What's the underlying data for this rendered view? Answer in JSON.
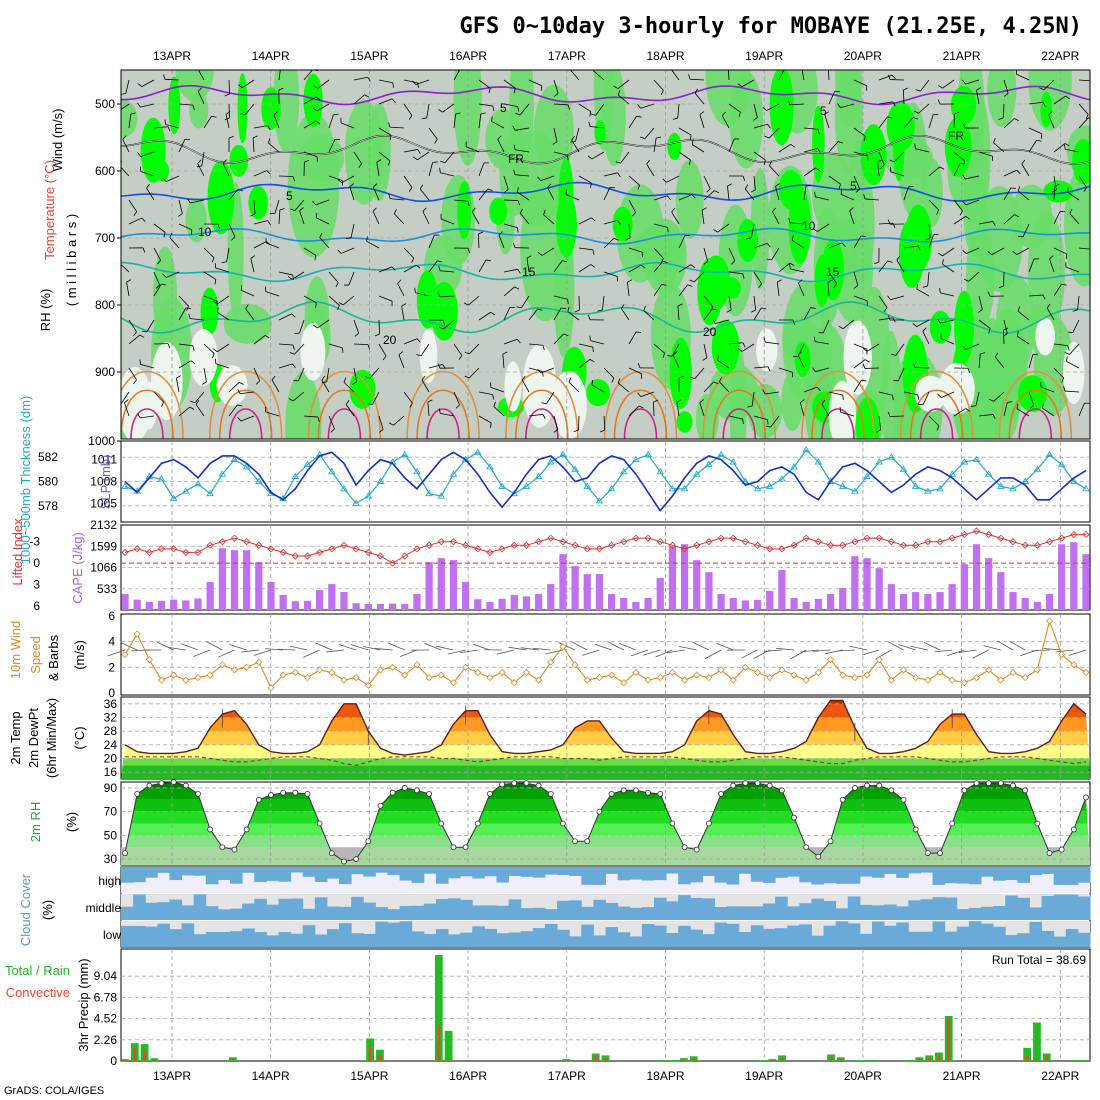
{
  "header": {
    "title": "GFS 0~10day 3-hourly for MOBAYE (21.25E, 4.25N)",
    "footer": "GrADS: COLA/IGES",
    "run_total": "Run Total = 38.69"
  },
  "dates": [
    "13APR",
    "14APR",
    "15APR",
    "16APR",
    "17APR",
    "18APR",
    "19APR",
    "20APR",
    "21APR",
    "22APR"
  ],
  "panels": {
    "upper": {
      "ylabel_a": "Wind (m/s)",
      "ylabel_b": "Temperature (°C)",
      "ylabel_c": "RH (%)",
      "ylabel_d": "( m i l l i b a r s )",
      "levels": [
        "500",
        "600",
        "700",
        "800",
        "900",
        "1000"
      ],
      "contour_labels": [
        "5",
        "5",
        "FR",
        "FR",
        "5",
        "5",
        "10",
        "10",
        "15",
        "15",
        "20",
        "20"
      ]
    },
    "thickness": {
      "ylabel_left": "1000~500mb Thickness (dm)",
      "ylabel_right": "SLP (mb)",
      "left_ticks": [
        "582",
        "580",
        "578"
      ],
      "right_ticks": [
        "1011",
        "1008",
        "1005"
      ]
    },
    "cape": {
      "ylabel_left": "Lifted Index",
      "ylabel_right": "CAPE (J/kg)",
      "left_ticks": [
        "-3",
        "0",
        "3",
        "6"
      ],
      "right_ticks": [
        "2132",
        "1599",
        "1066",
        "533"
      ]
    },
    "wind10": {
      "ylabel_a": "10m Wind",
      "ylabel_b": "Speed",
      "ylabel_c": "& Barbs",
      "ylabel_unit": "(m/s)",
      "ticks": [
        "6",
        "4",
        "2",
        "0"
      ]
    },
    "temp2m": {
      "ylabel_a": "2m Temp",
      "ylabel_b": "2m DewPt",
      "ylabel_c": "(6hr Min/Max)",
      "ylabel_unit": "(°C)",
      "ticks": [
        "36",
        "32",
        "28",
        "24",
        "20",
        "16"
      ]
    },
    "rh2m": {
      "ylabel_a": "2m RH",
      "ylabel_unit": "(%)",
      "ticks": [
        "90",
        "70",
        "50",
        "30"
      ]
    },
    "cloud": {
      "ylabel_a": "Cloud Cover",
      "ylabel_unit": "(%)",
      "rows": [
        "high",
        "middle",
        "low"
      ]
    },
    "precip": {
      "ylabel_a": "Total / Rain",
      "ylabel_b": "Convective",
      "ylabel_c": "3hr Precip (mm)",
      "ticks": [
        "9.04",
        "6.78",
        "4.52",
        "2.26",
        "0"
      ]
    }
  },
  "colors": {
    "rh_green": "#00ff00",
    "rh_grey": "#c0ccc0",
    "thickness": "#22aacc",
    "slp": "#1030c8",
    "cape": "#c070f0",
    "lifted_index": "#dd3030",
    "wind_speed": "#e08820",
    "precip_total": "#22bb22",
    "precip_conv": "#ee4433",
    "cloud": "#6aaad8"
  },
  "chart_data": [
    {
      "type": "line",
      "name": "1000~500mb Thickness",
      "ylim": [
        577,
        583
      ],
      "values": [
        579.6,
        579.2,
        580.4,
        580.2,
        578.6,
        579.2,
        579.8,
        579.0,
        580.6,
        581.8,
        581.2,
        580.0,
        579.0,
        578.6,
        580.4,
        581.4,
        582.2,
        580.8,
        579.4,
        578.2,
        578.8,
        580.0,
        581.6,
        582.2,
        580.8,
        579.0,
        578.8,
        580.6,
        581.8,
        582.4,
        581.2,
        579.6,
        579.0,
        579.6,
        580.4,
        581.6,
        582.2,
        581.0,
        579.6,
        578.4,
        579.4,
        580.8,
        581.8,
        582.2,
        580.8,
        579.4,
        579.4,
        580.6,
        581.4,
        582.2,
        581.6,
        580.0,
        579.4,
        579.6,
        580.2,
        581.2,
        582.6,
        581.6,
        580.0,
        579.6,
        579.2,
        580.4,
        581.6,
        582.0,
        581.0,
        579.6,
        579.2,
        579.4,
        580.6,
        581.6,
        581.8,
        580.6,
        579.6,
        579.4,
        580.0,
        581.0,
        582.2,
        581.4,
        580.0,
        579.4
      ]
    },
    {
      "type": "line",
      "name": "SLP",
      "ylim": [
        1003,
        1013
      ],
      "values": [
        1008,
        1006.5,
        1008.5,
        1010.5,
        1011,
        1010,
        1008.5,
        1010.5,
        1011.5,
        1011.5,
        1010.5,
        1009,
        1006.5,
        1005.5,
        1007,
        1009.5,
        1011.5,
        1012,
        1010.5,
        1007.5,
        1009.5,
        1011,
        1010.5,
        1008.5,
        1007,
        1009,
        1011,
        1012,
        1011,
        1009,
        1006.5,
        1004.5,
        1006.5,
        1009,
        1011,
        1011.5,
        1010,
        1008,
        1008.5,
        1010.5,
        1011.5,
        1011,
        1009,
        1006.5,
        1004,
        1006,
        1008.5,
        1010.5,
        1011.5,
        1011,
        1009.5,
        1007.5,
        1008,
        1009.5,
        1010,
        1009,
        1006.5,
        1005.5,
        1008,
        1010,
        1010.5,
        1009.5,
        1008,
        1006.5,
        1007.5,
        1009,
        1010,
        1009.5,
        1008.5,
        1007,
        1005.5,
        1007,
        1008.5,
        1008.5,
        1007.5,
        1005.5,
        1005.5,
        1007,
        1008.5,
        1009.5
      ]
    },
    {
      "type": "bar",
      "name": "CAPE",
      "ylim": [
        0,
        2132
      ],
      "values": [
        400,
        260,
        200,
        230,
        260,
        240,
        290,
        700,
        1550,
        1500,
        1500,
        1200,
        700,
        380,
        220,
        230,
        500,
        650,
        450,
        170,
        150,
        150,
        160,
        150,
        400,
        1200,
        1300,
        1250,
        700,
        270,
        200,
        280,
        380,
        340,
        400,
        650,
        1400,
        1100,
        900,
        900,
        400,
        300,
        200,
        300,
        800,
        1600,
        1650,
        1250,
        950,
        400,
        300,
        240,
        250,
        480,
        1000,
        300,
        200,
        280,
        400,
        550,
        1350,
        1300,
        1050,
        650,
        400,
        450,
        400,
        450,
        650,
        1150,
        1650,
        1300,
        950,
        450,
        300,
        200,
        400,
        1650,
        1700,
        1400
      ]
    },
    {
      "type": "line",
      "name": "Lifted Index",
      "ylim": [
        -4.5,
        6
      ],
      "values": [
        -1.5,
        -2,
        -1.5,
        -2,
        -2,
        -1.5,
        -1.5,
        -2.5,
        -3,
        -3.5,
        -3,
        -2.5,
        -2,
        -1.5,
        -1,
        -1,
        -1.5,
        -2,
        -2.5,
        -2,
        -1.5,
        -1,
        0,
        -1,
        -2,
        -2.5,
        -3,
        -3,
        -2.5,
        -2,
        -1.5,
        -2,
        -2.5,
        -2.5,
        -3,
        -3.5,
        -3,
        -2.5,
        -2,
        -2,
        -2.5,
        -3,
        -3.5,
        -3.5,
        -3,
        -2.5,
        -2,
        -2.5,
        -3,
        -3.5,
        -3.5,
        -3,
        -2.5,
        -2,
        -2,
        -2.5,
        -3.5,
        -3,
        -2.5,
        -2.5,
        -3,
        -3.5,
        -3.5,
        -3,
        -2.5,
        -2.5,
        -3,
        -3,
        -3.5,
        -4,
        -4.5,
        -4,
        -3.5,
        -3,
        -2.5,
        -2.5,
        -3,
        -3.5,
        -4,
        -4
      ]
    },
    {
      "type": "line",
      "name": "10m Wind Speed",
      "ylim": [
        0,
        6
      ],
      "values": [
        3,
        4.6,
        2.6,
        1,
        1.4,
        1,
        1.2,
        1.4,
        2.2,
        1.8,
        2,
        2.4,
        0.4,
        1.4,
        1.6,
        1.2,
        1.8,
        1.6,
        1,
        1.2,
        0.6,
        1.8,
        2,
        1.4,
        2.2,
        1.2,
        1.4,
        0.8,
        2,
        1.6,
        1.2,
        1.6,
        0.8,
        1.6,
        1,
        2.4,
        3.6,
        2.2,
        1,
        1.2,
        1.4,
        0.8,
        1.6,
        1,
        1.2,
        1.6,
        1,
        1.4,
        1.2,
        1.8,
        1,
        2,
        1.6,
        1.2,
        1.8,
        1.4,
        1,
        1.6,
        2.6,
        1.4,
        1.2,
        1.4,
        2.6,
        1,
        1.8,
        1.2,
        1,
        1.6,
        1,
        0.8,
        1.2,
        1.8,
        1,
        1.6,
        1.2,
        1.8,
        5.6,
        3,
        2.2,
        1.6
      ]
    },
    {
      "type": "area",
      "name": "2m Temp",
      "ylim": [
        14,
        38
      ],
      "values": [
        24,
        22,
        21.5,
        21.5,
        21.5,
        22,
        23,
        29,
        33,
        34,
        30,
        24,
        22,
        21.5,
        21.5,
        22,
        24,
        31,
        36,
        36,
        28,
        23,
        21.5,
        21,
        21.5,
        22,
        24,
        30,
        34,
        34,
        27,
        22,
        21.5,
        21.5,
        22,
        22.5,
        24,
        29,
        31,
        31,
        26,
        22,
        21.5,
        21.5,
        21.5,
        22,
        24,
        31,
        34,
        33,
        27,
        22,
        21.5,
        21.5,
        22,
        23,
        25,
        32,
        37,
        37,
        29,
        23,
        21.5,
        21.5,
        22,
        23,
        25,
        30,
        33,
        33,
        27,
        22,
        21.5,
        21.5,
        22,
        23,
        25,
        31,
        36,
        33
      ]
    },
    {
      "type": "line",
      "name": "2m DewPt",
      "ylim": [
        14,
        38
      ],
      "values": [
        20.5,
        20.5,
        20.5,
        20.5,
        20.5,
        20.5,
        20.5,
        20,
        19.5,
        19,
        19,
        19.5,
        20,
        20.5,
        20.5,
        20.5,
        20,
        19.5,
        18.5,
        18,
        19,
        20,
        20.5,
        20.5,
        20.5,
        20.5,
        20,
        20,
        19.5,
        19,
        19.5,
        20,
        20.5,
        20.5,
        20.5,
        20.5,
        20,
        20,
        20,
        19.5,
        20,
        20.5,
        20.5,
        20.5,
        20.5,
        20.5,
        20,
        19.5,
        19,
        19,
        19.5,
        20,
        20.5,
        20.5,
        20.5,
        20,
        19.5,
        19,
        18.5,
        18.5,
        19.5,
        20,
        20.5,
        20.5,
        20.5,
        20.5,
        20,
        19.5,
        19,
        19,
        19.5,
        20,
        20.5,
        20.5,
        20.5,
        20,
        19.5,
        19,
        18.5,
        19
      ]
    },
    {
      "type": "area",
      "name": "2m RH",
      "ylim": [
        25,
        95
      ],
      "values": [
        35,
        85,
        92,
        94,
        95,
        92,
        85,
        55,
        40,
        38,
        55,
        80,
        84,
        86,
        86,
        85,
        60,
        35,
        28,
        30,
        45,
        75,
        86,
        90,
        88,
        85,
        60,
        40,
        40,
        60,
        85,
        93,
        94,
        94,
        92,
        85,
        60,
        45,
        45,
        70,
        85,
        88,
        88,
        86,
        85,
        60,
        40,
        38,
        60,
        85,
        92,
        94,
        94,
        92,
        88,
        65,
        40,
        32,
        45,
        80,
        90,
        92,
        92,
        88,
        80,
        55,
        35,
        35,
        60,
        88,
        94,
        94,
        94,
        92,
        88,
        60,
        35,
        38,
        55,
        82
      ]
    },
    {
      "type": "bar",
      "name": "3hr Precip Total",
      "ylim": [
        0,
        11.3
      ],
      "values": [
        0.2,
        1.9,
        1.8,
        0.3,
        0,
        0,
        0,
        0,
        0,
        0,
        0,
        0.4,
        0,
        0,
        0,
        0,
        0,
        0,
        0,
        0,
        0,
        0,
        0,
        0,
        0,
        2.4,
        1.2,
        0,
        0,
        0,
        0,
        0,
        11.3,
        3.2,
        0,
        0,
        0,
        0,
        0,
        0,
        0,
        0,
        0,
        0,
        0,
        0.2,
        0,
        0,
        0.8,
        0.6,
        0,
        0,
        0,
        0,
        0,
        0.1,
        0.1,
        0.3,
        0.5,
        0,
        0,
        0,
        0,
        0,
        0,
        0.1,
        0.2,
        0.6,
        0,
        0,
        0,
        0,
        0.7,
        0.4,
        0,
        0.1,
        0.1,
        0,
        0,
        0,
        0.1,
        0.4,
        0.6,
        0.9,
        4.8,
        0,
        0,
        0,
        0,
        0,
        0,
        0,
        1.4,
        4.1,
        0.8,
        0,
        0,
        0.1,
        0.1
      ]
    },
    {
      "type": "bar",
      "name": "3hr Precip Convective",
      "ylim": [
        0,
        11.3
      ],
      "values": [
        0.1,
        1.4,
        1.2,
        0.2,
        0,
        0,
        0,
        0,
        0,
        0,
        0,
        0.2,
        0,
        0,
        0,
        0,
        0,
        0,
        0,
        0,
        0,
        0,
        0,
        0,
        0,
        1.6,
        0.6,
        0,
        0,
        0,
        0,
        0,
        3.8,
        0.2,
        0,
        0,
        0,
        0,
        0,
        0,
        0,
        0,
        0,
        0,
        0,
        0.1,
        0,
        0,
        0.5,
        0.3,
        0,
        0,
        0,
        0,
        0,
        0,
        0,
        0.1,
        0.2,
        0,
        0,
        0,
        0,
        0,
        0,
        0,
        0.1,
        0.3,
        0,
        0,
        0,
        0,
        0.4,
        0.2,
        0,
        0,
        0,
        0,
        0,
        0,
        0,
        0.2,
        0.3,
        0.5,
        4.6,
        0,
        0,
        0,
        0,
        0,
        0,
        0,
        0.6,
        0.2,
        0.6,
        0,
        0,
        0,
        0
      ]
    }
  ]
}
